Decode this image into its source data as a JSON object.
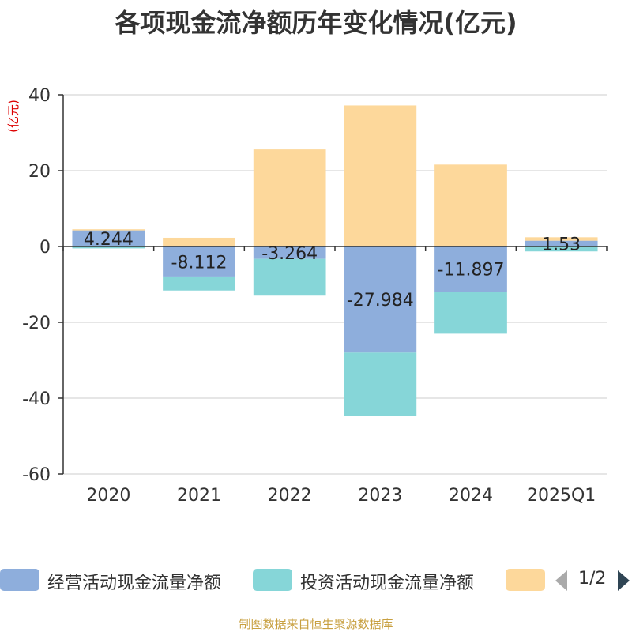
{
  "chart_data": {
    "type": "bar",
    "stacked": true,
    "title": "各项现金流净额历年变化情况(亿元)",
    "ylabel": "(亿元)",
    "ylim": [
      -60,
      40
    ],
    "yticks": [
      40,
      20,
      0,
      -20,
      -40,
      -60
    ],
    "grid": true,
    "categories": [
      "2020",
      "2021",
      "2022",
      "2023",
      "2024",
      "2025Q1"
    ],
    "series": [
      {
        "name": "经营活动现金流量净额",
        "color": "#8eaedc",
        "values": [
          4.244,
          -8.112,
          -3.264,
          -27.984,
          -11.897,
          1.53
        ],
        "labels": [
          "4.244",
          "-8.112",
          "-3.264",
          "-27.984",
          "-11.897",
          "1.53"
        ]
      },
      {
        "name": "投资活动现金流量净额",
        "color": "#86d6d8",
        "values": [
          -0.5,
          -3.5,
          -9.7,
          -16.7,
          -11.1,
          -1.3
        ]
      },
      {
        "name": "",
        "color": "#fdd89b",
        "values": [
          0.3,
          2.3,
          25.6,
          37.2,
          21.6,
          0.9
        ]
      }
    ],
    "legend_position": "bottom"
  },
  "legend": {
    "pager": "1/2",
    "prev_icon": "triangle-left-icon",
    "next_icon": "triangle-right-icon"
  },
  "source": "制图数据来自恒生聚源数据库",
  "colors": {
    "axis": "#333333",
    "grid": "#cccccc",
    "ylabel": "#dd0000",
    "pager_inactive": "#aaaaaa",
    "pager_active": "#2f4554"
  }
}
